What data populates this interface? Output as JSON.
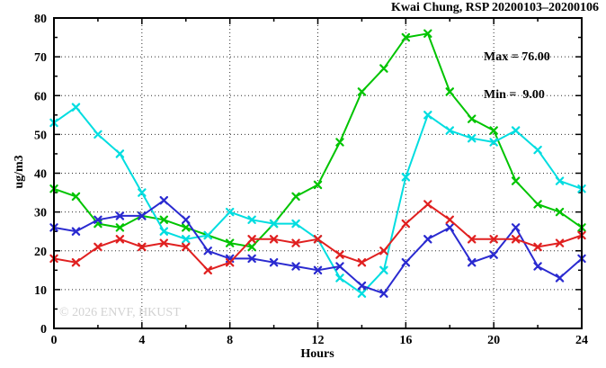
{
  "title": "Kwai Chung, RSP 20200103–20200106",
  "legend": {
    "max_label": "Max = 76.00",
    "min_label": "Min =  9.00"
  },
  "watermark": "© 2026 ENVF, HKUST",
  "colors": {
    "green": "#00c400",
    "cyan": "#00dde0",
    "blue": "#2a2ad0",
    "red": "#e02020",
    "grid": "#2e2e2e",
    "frame": "#000000",
    "watermark": "#d2d2d2"
  },
  "chart_data": {
    "type": "line",
    "title": "Kwai Chung, RSP 20200103–20200106",
    "xlabel": "Hours",
    "ylabel": "ug/m3",
    "xlim": [
      0,
      24
    ],
    "ylim": [
      0,
      80
    ],
    "x_tick_labels": [
      0,
      4,
      8,
      12,
      16,
      20,
      24
    ],
    "x_minor_step": 2,
    "y_tick_labels": [
      0,
      10,
      20,
      30,
      40,
      50,
      60,
      70,
      80
    ],
    "y_minor_step": 5,
    "grid": "dotted lines at labeled major ticks",
    "legend_position": "top-right inside plot",
    "annotations": {
      "max": 76.0,
      "min": 9.0
    },
    "marker": "x-cross",
    "x": [
      0,
      1,
      2,
      3,
      4,
      5,
      6,
      7,
      8,
      9,
      10,
      11,
      12,
      13,
      14,
      15,
      16,
      17,
      18,
      19,
      20,
      21,
      22,
      23,
      24
    ],
    "series": [
      {
        "name": "green",
        "values": [
          36,
          34,
          27,
          26,
          29,
          28,
          26,
          24,
          22,
          21,
          27,
          34,
          37,
          48,
          61,
          67,
          75,
          76,
          61,
          54,
          51,
          38,
          32,
          30,
          26
        ]
      },
      {
        "name": "cyan",
        "values": [
          53,
          57,
          50,
          45,
          35,
          25,
          23,
          24,
          30,
          28,
          27,
          27,
          23,
          13,
          9,
          15,
          39,
          55,
          51,
          49,
          48,
          51,
          46,
          38,
          36
        ]
      },
      {
        "name": "blue",
        "values": [
          26,
          25,
          28,
          29,
          29,
          33,
          28,
          20,
          18,
          18,
          17,
          16,
          15,
          16,
          11,
          9,
          17,
          23,
          26,
          17,
          19,
          26,
          16,
          13,
          18
        ]
      },
      {
        "name": "red",
        "values": [
          18,
          17,
          21,
          23,
          21,
          22,
          21,
          15,
          17,
          23,
          23,
          22,
          23,
          19,
          17,
          20,
          27,
          32,
          28,
          23,
          23,
          23,
          21,
          22,
          24
        ]
      }
    ]
  }
}
